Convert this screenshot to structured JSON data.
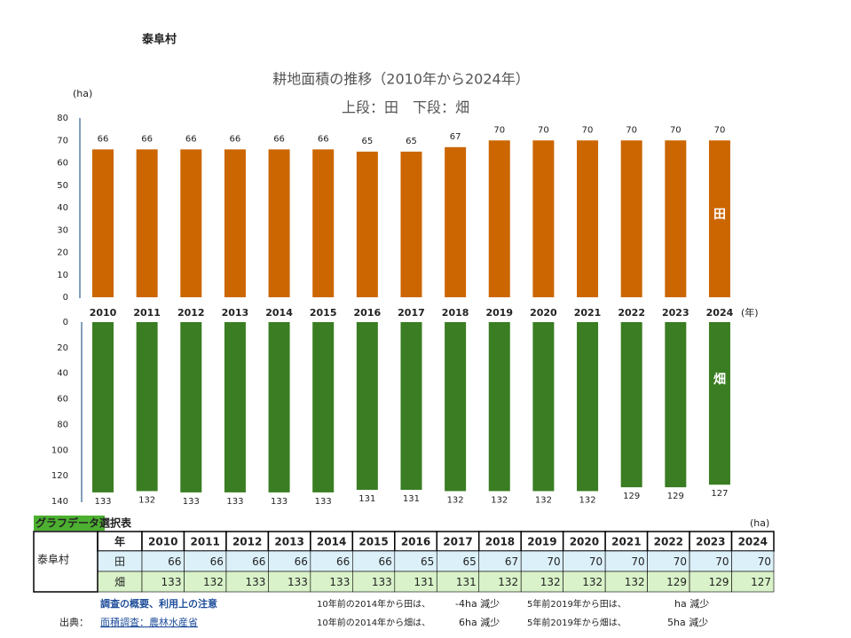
{
  "header": {
    "title": "泰阜村"
  },
  "chart_data": [
    {
      "type": "bar",
      "title": "耕地面積の推移（2010年から2024年）",
      "subtitle": "上段：田　下段：畑",
      "y_unit": "(ha)",
      "x_unit": "(年)",
      "categories": [
        "2010",
        "2011",
        "2012",
        "2013",
        "2014",
        "2015",
        "2016",
        "2017",
        "2018",
        "2019",
        "2020",
        "2021",
        "2022",
        "2023",
        "2024"
      ],
      "series": [
        {
          "name": "田",
          "color": "#cc6600",
          "values": [
            66,
            66,
            66,
            66,
            66,
            66,
            65,
            65,
            67,
            70,
            70,
            70,
            70,
            70,
            70
          ]
        }
      ],
      "ylim": [
        0,
        80
      ],
      "yticks": [
        0,
        10,
        20,
        30,
        40,
        50,
        60,
        70,
        80
      ]
    },
    {
      "type": "bar",
      "inverted": true,
      "series": [
        {
          "name": "畑",
          "color": "#3a7d22",
          "values": [
            133,
            132,
            133,
            133,
            133,
            133,
            131,
            131,
            132,
            132,
            132,
            132,
            129,
            129,
            127
          ]
        }
      ],
      "ylim": [
        0,
        140
      ],
      "yticks": [
        0,
        20,
        40,
        60,
        80,
        100,
        120,
        140
      ]
    }
  ],
  "table": {
    "title": "グラフデータ選択表",
    "unit": "(ha)",
    "place": "泰阜村",
    "header": [
      "年",
      "2010",
      "2011",
      "2012",
      "2013",
      "2014",
      "2015",
      "2016",
      "2017",
      "2018",
      "2019",
      "2020",
      "2021",
      "2022",
      "2023",
      "2024"
    ],
    "rows": [
      [
        "田",
        66,
        66,
        66,
        66,
        66,
        66,
        65,
        65,
        67,
        70,
        70,
        70,
        70,
        70,
        70
      ],
      [
        "畑",
        133,
        132,
        133,
        133,
        133,
        133,
        131,
        131,
        132,
        132,
        132,
        132,
        129,
        129,
        127
      ]
    ]
  },
  "notes": {
    "survey": "調査の概要、利用上の注意",
    "source_label": "出典：",
    "source": "面積調査：農林水産省",
    "lines": [
      [
        "10年前の2014年から田は、",
        "-4ha 減少"
      ],
      [
        "5年前2019年から田は、",
        "ha 減少"
      ],
      [
        "10年前の2014年から畑は、",
        "6ha 減少"
      ],
      [
        "5年前2019年から畑は、",
        "5ha 減少"
      ]
    ]
  }
}
